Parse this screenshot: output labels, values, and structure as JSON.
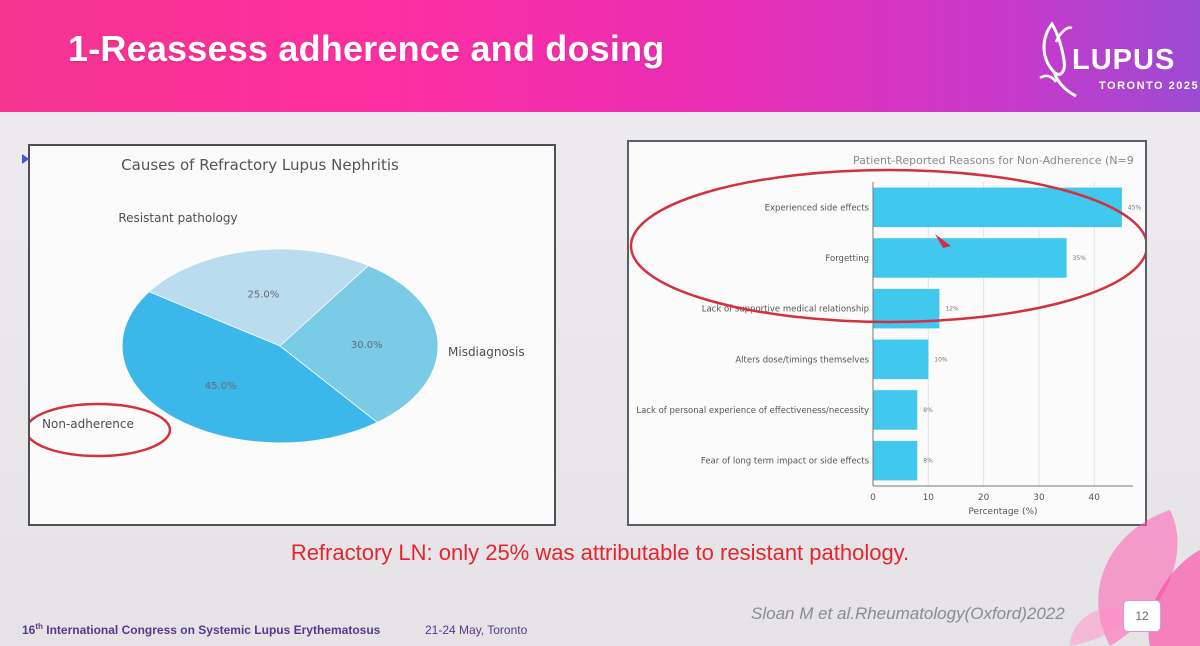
{
  "slide": {
    "title": "1-Reassess adherence and dosing",
    "logo_word": "LUPUS",
    "logo_sub": "TORONTO 2025",
    "caption": "Refractory LN: only 25% was attributable to resistant pathology.",
    "citation": "Sloan M et al.Rheumatology(Oxford)2022",
    "footer_ordinal": "16",
    "footer_ordinal_suffix": "th",
    "footer_text": " International Congress on Systemic Lupus Erythematosus",
    "footer_date": "21-24 May, Toronto",
    "page_number": "12"
  },
  "colors": {
    "header_pink": "#ff2fa0",
    "header_purple": "#9c4bd3",
    "caption_red": "#e5252f",
    "annotation_red": "#d2323e",
    "bar_blue": "#41c8ef",
    "pie_dark": "#3bb7e9",
    "pie_mid": "#79cbe6",
    "pie_light": "#b9dcee"
  },
  "icons": {
    "logo": "lupus-butterfly-logo",
    "bullet": "triangle-bullet-icon",
    "pointer": "laser-pointer-icon"
  },
  "chart_data": [
    {
      "type": "pie",
      "title": "Causes of Refractory Lupus Nephritis",
      "slices": [
        {
          "label": "Resistant pathology",
          "value": 25.0,
          "label_text": "25.0%",
          "color": "#b9dcee"
        },
        {
          "label": "Misdiagnosis",
          "value": 30.0,
          "label_text": "30.0%",
          "color": "#79cbe6"
        },
        {
          "label": "Non-adherence",
          "value": 45.0,
          "label_text": "45.0%",
          "color": "#3bb7e9"
        }
      ],
      "highlighted": "Non-adherence"
    },
    {
      "type": "bar",
      "orientation": "horizontal",
      "title": "Patient-Reported Reasons for Non-Adherence (N=9",
      "categories": [
        "Experienced side effects",
        "Forgetting",
        "Lack of supportive medical relationship",
        "Alters dose/timings themselves",
        "Lack of personal experience of effectiveness/necessity",
        "Fear of long term impact or side effects"
      ],
      "values": [
        45,
        35,
        12,
        10,
        8,
        8
      ],
      "value_labels": [
        "45%",
        "35%",
        "12%",
        "10%",
        "8%",
        "8%"
      ],
      "xlabel": "Percentage (%)",
      "ylabel": "",
      "xlim": [
        0,
        47
      ],
      "xticks": [
        0,
        10,
        20,
        30,
        40
      ],
      "grid": true,
      "highlighted": [
        "Experienced side effects",
        "Forgetting",
        "Lack of supportive medical relationship"
      ]
    }
  ]
}
